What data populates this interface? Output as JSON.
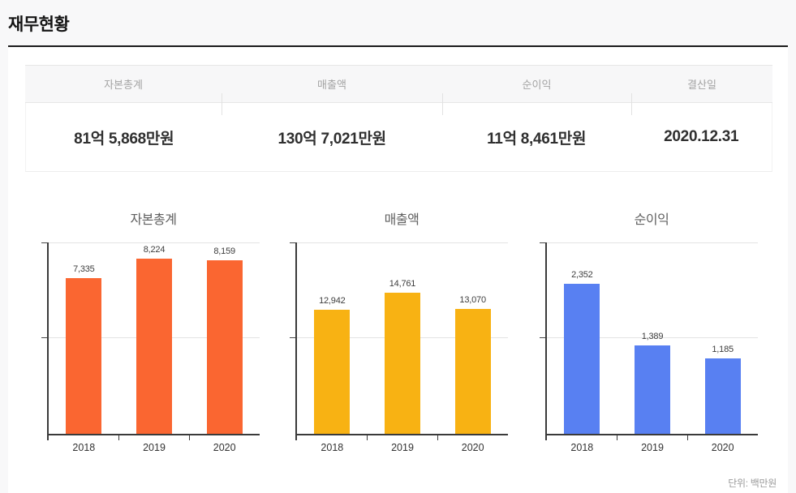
{
  "page": {
    "title": "재무현황",
    "unit_note": "단위: 백만원"
  },
  "summary_table": {
    "headers": [
      "자본총계",
      "매출액",
      "순이익",
      "결산일"
    ],
    "values": [
      "81억 5,868만원",
      "130억 7,021만원",
      "11억 8,461만원",
      "2020.12.31"
    ]
  },
  "chart_data": [
    {
      "type": "bar",
      "title": "자본총계",
      "categories": [
        "2018",
        "2019",
        "2020"
      ],
      "values": [
        7335,
        8224,
        8159
      ],
      "value_labels": [
        "7,335",
        "8,224",
        "8,159"
      ],
      "ylim": [
        0,
        9000
      ],
      "gridlines": [
        0,
        4500,
        9000
      ],
      "bar_color": "#fa6631",
      "grid": true,
      "legend": false,
      "unit": "백만원"
    },
    {
      "type": "bar",
      "title": "매출액",
      "categories": [
        "2018",
        "2019",
        "2020"
      ],
      "values": [
        12942,
        14761,
        13070
      ],
      "value_labels": [
        "12,942",
        "14,761",
        "13,070"
      ],
      "ylim": [
        0,
        20000
      ],
      "gridlines": [
        0,
        10000,
        20000
      ],
      "bar_color": "#f8b213",
      "grid": true,
      "legend": false,
      "unit": "백만원"
    },
    {
      "type": "bar",
      "title": "순이익",
      "categories": [
        "2018",
        "2019",
        "2020"
      ],
      "values": [
        2352,
        1389,
        1185
      ],
      "value_labels": [
        "2,352",
        "1,389",
        "1,185"
      ],
      "ylim": [
        0,
        3000
      ],
      "gridlines": [
        0,
        1500,
        3000
      ],
      "bar_color": "#5880f2",
      "grid": true,
      "legend": false,
      "unit": "백만원"
    }
  ],
  "colors": {
    "accent_orange": "#fa6631",
    "accent_yellow": "#f8b213",
    "accent_blue": "#5880f2",
    "axis": "#3a3a3a",
    "gridline": "#e3e3e3",
    "header_rule": "#1b1b1b"
  }
}
